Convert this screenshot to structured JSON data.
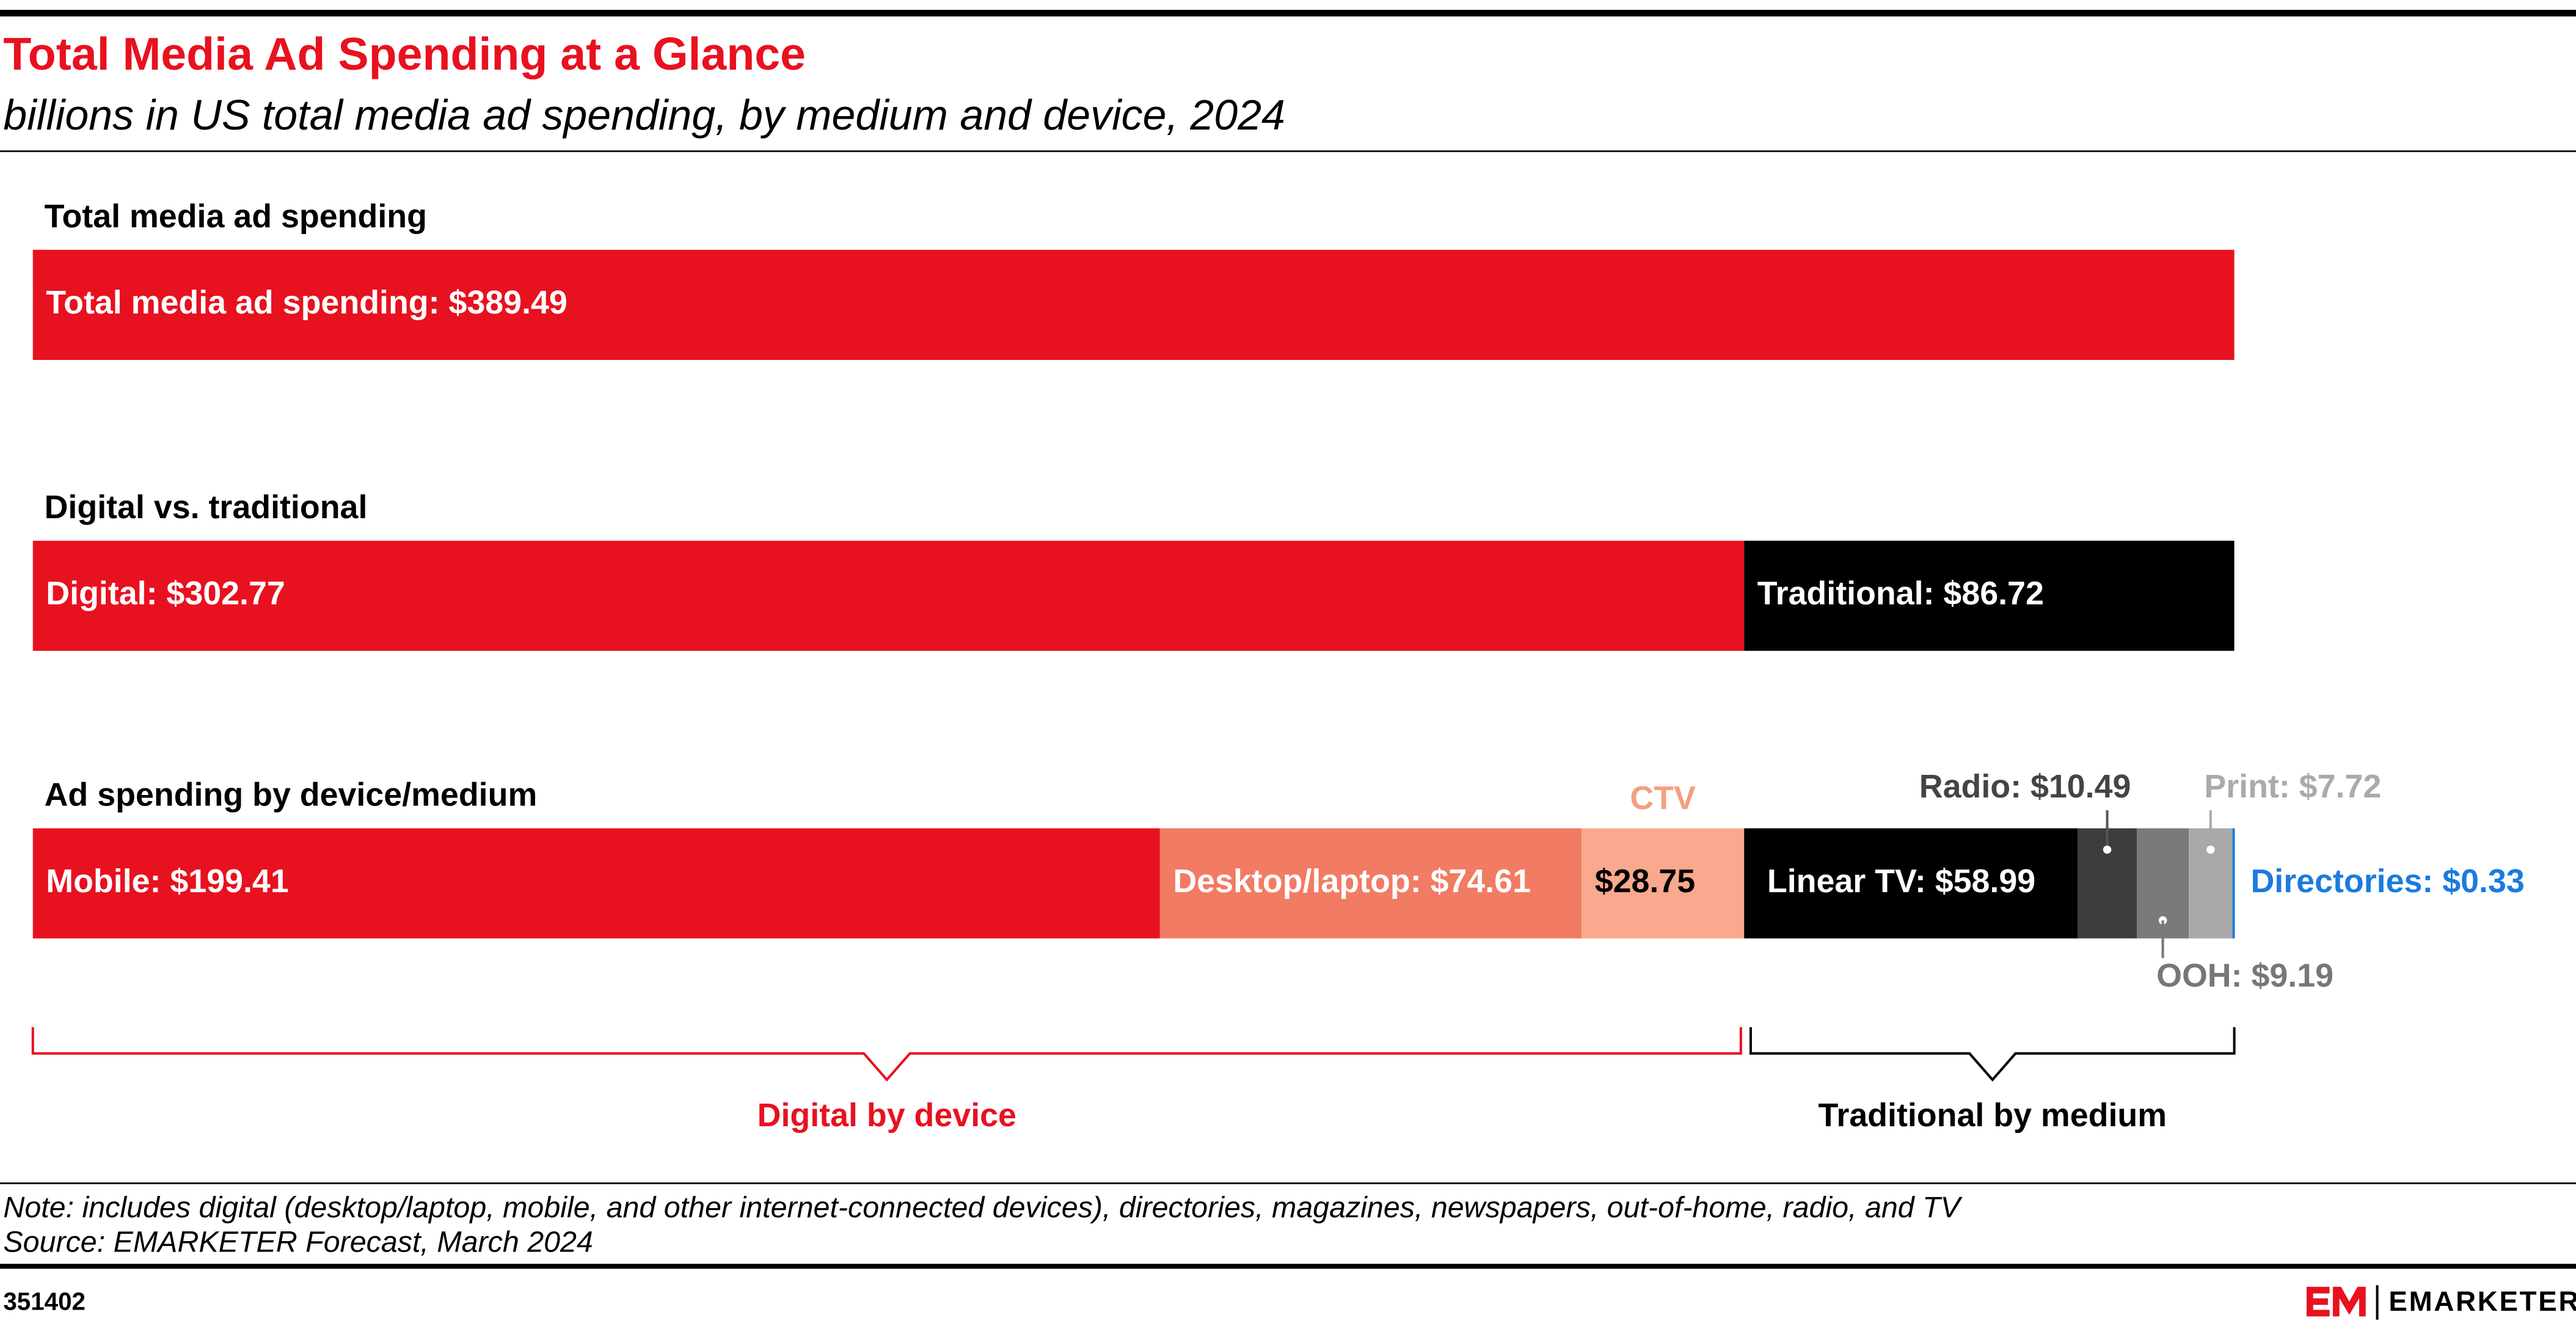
{
  "chart_data": {
    "type": "stacked-bar",
    "title": "Total Media Ad Spending at a Glance",
    "subtitle": "billions in US total media ad spending, by medium and device, 2024",
    "rows": [
      {
        "label": "Total media ad spending",
        "values": [
          389.49
        ],
        "value_labels": [
          "Total media ad spending: $389.49"
        ],
        "colors": [
          "#e8111f"
        ]
      },
      {
        "label": "Digital vs. traditional",
        "values": [
          302.77,
          86.72
        ],
        "value_labels": [
          "Digital: $302.77",
          "Traditional: $86.72"
        ],
        "colors": [
          "#e8111f",
          "#000000"
        ]
      },
      {
        "label": "Ad spending by device/medium",
        "values": [
          199.41,
          74.61,
          28.75,
          58.99,
          10.49,
          9.19,
          7.72,
          0.33
        ],
        "value_labels": [
          "Mobile: $199.41",
          "Desktop/laptop: $74.61",
          "$28.75",
          "Linear TV: $58.99",
          "Radio: $10.49",
          "OOH: $9.19",
          "Print: $7.72",
          "Directories: $0.33"
        ],
        "colors": [
          "#e8111f",
          "#f27b63",
          "#f9a98d",
          "#000000",
          "#3d3d3d",
          "#7a7a7a",
          "#a9a9a9",
          "#1a7be0"
        ],
        "annotations": [
          "CTV"
        ]
      }
    ],
    "brackets": [
      "Digital by device",
      "Traditional by medium"
    ],
    "note": "Note: includes digital (desktop/laptop, mobile, and other internet-connected devices), directories, magazines, newspapers, out-of-home, radio, and TV",
    "source": "Source: EMARKETER Forecast, March 2024",
    "chart_id": "351402",
    "brand": "EMARKETER"
  }
}
